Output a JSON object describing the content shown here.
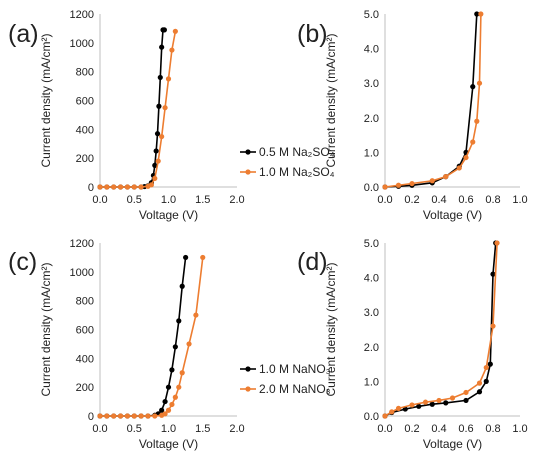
{
  "colors": {
    "black": "#000000",
    "orange": "#ED7D31",
    "axis": "#bfbfbf"
  },
  "chart_data": [
    {
      "panel_label": "(a)",
      "type": "line",
      "xlabel": "Voltage (V)",
      "ylabel": "Current density (mA/cm²)",
      "xlim": [
        0,
        2.0
      ],
      "ylim": [
        0,
        1200
      ],
      "x_ticks": [
        "0.0",
        "0.5",
        "1.0",
        "1.5",
        "2.0"
      ],
      "y_ticks": [
        "0",
        "200",
        "400",
        "600",
        "800",
        "1000",
        "1200"
      ],
      "grid": false,
      "legend": {
        "placement": "right"
      },
      "series": [
        {
          "name": "0.5 M Na₂SO₄",
          "color": "#000000",
          "x": [
            0.0,
            0.1,
            0.2,
            0.3,
            0.4,
            0.5,
            0.6,
            0.65,
            0.7,
            0.75,
            0.78,
            0.8,
            0.82,
            0.84,
            0.86,
            0.88,
            0.9,
            0.92,
            0.94
          ],
          "y": [
            0,
            0,
            0,
            0,
            0,
            0,
            0,
            3,
            8,
            30,
            80,
            150,
            250,
            370,
            560,
            760,
            970,
            1090,
            1090
          ]
        },
        {
          "name": "1.0 M Na₂SO₄",
          "color": "#ED7D31",
          "x": [
            0.0,
            0.1,
            0.2,
            0.3,
            0.4,
            0.5,
            0.6,
            0.7,
            0.75,
            0.8,
            0.85,
            0.9,
            0.95,
            1.0,
            1.05,
            1.1
          ],
          "y": [
            0,
            0,
            0,
            0,
            0,
            0,
            0,
            5,
            15,
            60,
            180,
            350,
            550,
            750,
            950,
            1080
          ]
        }
      ]
    },
    {
      "panel_label": "(b)",
      "type": "line",
      "xlabel": "Voltage (V)",
      "ylabel": "Current density (mA/cm²)",
      "xlim": [
        0,
        1.0
      ],
      "ylim": [
        0,
        5.0
      ],
      "x_ticks": [
        "0.0",
        "0.2",
        "0.4",
        "0.6",
        "0.8",
        "1.0"
      ],
      "y_ticks": [
        "0.0",
        "1.0",
        "2.0",
        "3.0",
        "4.0",
        "5.0"
      ],
      "grid": false,
      "series": [
        {
          "name": "0.5 M Na₂SO₄",
          "color": "#000000",
          "x": [
            0.0,
            0.1,
            0.2,
            0.35,
            0.45,
            0.55,
            0.6,
            0.65,
            0.68
          ],
          "y": [
            0.0,
            0.02,
            0.05,
            0.12,
            0.3,
            0.6,
            1.0,
            2.9,
            5.0
          ]
        },
        {
          "name": "1.0 M Na₂SO₄",
          "color": "#ED7D31",
          "x": [
            0.0,
            0.1,
            0.2,
            0.35,
            0.45,
            0.55,
            0.6,
            0.65,
            0.68,
            0.7,
            0.71
          ],
          "y": [
            0.0,
            0.05,
            0.1,
            0.18,
            0.3,
            0.55,
            0.85,
            1.3,
            1.9,
            3.0,
            5.0
          ]
        }
      ]
    },
    {
      "panel_label": "(c)",
      "type": "line",
      "xlabel": "Voltage (V)",
      "ylabel": "Current density (mA/cm²)",
      "xlim": [
        0,
        2.0
      ],
      "ylim": [
        0,
        1200
      ],
      "x_ticks": [
        "0.0",
        "0.5",
        "1.0",
        "1.5",
        "2.0"
      ],
      "y_ticks": [
        "0",
        "200",
        "400",
        "600",
        "800",
        "1000",
        "1200"
      ],
      "grid": false,
      "legend": {
        "placement": "right"
      },
      "series": [
        {
          "name": "1.0 M NaNO₃",
          "color": "#000000",
          "x": [
            0.0,
            0.1,
            0.2,
            0.3,
            0.4,
            0.5,
            0.6,
            0.7,
            0.8,
            0.85,
            0.9,
            0.95,
            1.0,
            1.05,
            1.1,
            1.15,
            1.2,
            1.25
          ],
          "y": [
            0,
            0,
            0,
            0,
            0,
            0,
            0,
            0,
            5,
            15,
            40,
            100,
            200,
            320,
            480,
            660,
            900,
            1100
          ]
        },
        {
          "name": "2.0 M NaNO₃",
          "color": "#ED7D31",
          "x": [
            0.0,
            0.1,
            0.2,
            0.3,
            0.4,
            0.5,
            0.6,
            0.7,
            0.8,
            0.9,
            0.95,
            1.0,
            1.05,
            1.1,
            1.15,
            1.2,
            1.3,
            1.4,
            1.5
          ],
          "y": [
            0,
            0,
            0,
            0,
            0,
            0,
            0,
            0,
            0,
            5,
            15,
            40,
            80,
            130,
            200,
            300,
            500,
            700,
            1100
          ]
        }
      ]
    },
    {
      "panel_label": "(d)",
      "type": "line",
      "xlabel": "Voltage (V)",
      "ylabel": "Current density (mA/cm²)",
      "xlim": [
        0,
        1.0
      ],
      "ylim": [
        0,
        5.0
      ],
      "x_ticks": [
        "0.0",
        "0.2",
        "0.4",
        "0.6",
        "0.8",
        "1.0"
      ],
      "y_ticks": [
        "0.0",
        "1.0",
        "2.0",
        "3.0",
        "4.0",
        "5.0"
      ],
      "grid": false,
      "series": [
        {
          "name": "1.0 M NaNO₃",
          "color": "#000000",
          "x": [
            0.0,
            0.05,
            0.15,
            0.25,
            0.35,
            0.45,
            0.6,
            0.7,
            0.75,
            0.78,
            0.8,
            0.82
          ],
          "y": [
            0.0,
            0.1,
            0.2,
            0.28,
            0.34,
            0.38,
            0.45,
            0.7,
            1.0,
            1.5,
            4.1,
            5.0
          ]
        },
        {
          "name": "2.0 M NaNO₃",
          "color": "#ED7D31",
          "x": [
            0.0,
            0.05,
            0.1,
            0.2,
            0.3,
            0.4,
            0.5,
            0.6,
            0.7,
            0.75,
            0.8,
            0.83
          ],
          "y": [
            0.0,
            0.12,
            0.22,
            0.32,
            0.4,
            0.45,
            0.52,
            0.68,
            0.95,
            1.4,
            2.6,
            5.0
          ]
        }
      ]
    }
  ]
}
